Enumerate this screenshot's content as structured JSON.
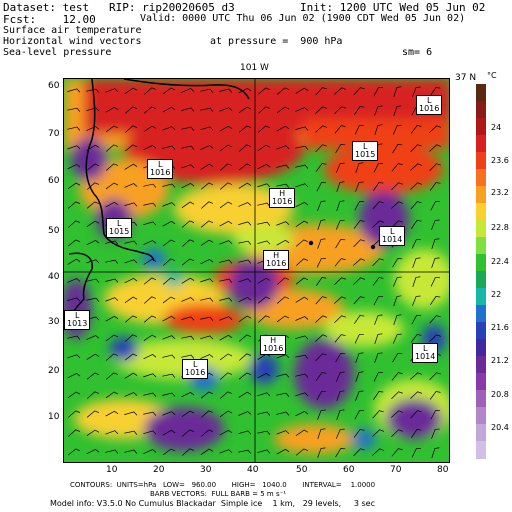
{
  "header": {
    "dataset_line": "Dataset: test   RIP: rip20020605 d3",
    "init_line": "Init: 1200 UTC Wed 05 Jun 02",
    "fcst_line": "Fcst:    12.00",
    "valid_line": "Valid: 0000 UTC Thu 06 Jun 02 (1900 CDT Wed 05 Jun 02)",
    "field1": "Surface air temperature",
    "field2": "Horizontal wind vectors",
    "field3": "Sea-level pressure",
    "pressure_line": "at pressure =  900 hPa",
    "sm_line": "sm= 6"
  },
  "map": {
    "top_label": "101 W",
    "right_label": "37 N",
    "y_ticks": [
      "60",
      "50",
      "40",
      "30",
      "20",
      "10"
    ],
    "x_ticks": [
      "10",
      "20",
      "30",
      "40",
      "50",
      "60",
      "70",
      "80"
    ],
    "pressure_centers": [
      {
        "type": "L",
        "value": "1016"
      },
      {
        "type": "L",
        "value": "1016"
      },
      {
        "type": "L",
        "value": "1015"
      },
      {
        "type": "H",
        "value": "1016"
      },
      {
        "type": "L",
        "value": "1015"
      },
      {
        "type": "L",
        "value": "1014"
      },
      {
        "type": "H",
        "value": "1016"
      },
      {
        "type": "L",
        "value": "1013"
      },
      {
        "type": "H",
        "value": "1016"
      },
      {
        "type": "L",
        "value": "1014"
      },
      {
        "type": "L",
        "value": "1016"
      }
    ]
  },
  "colorbar": {
    "unit": "°C",
    "labels": [
      "24",
      "23.6",
      "23.2",
      "22.8",
      "22.4",
      "22",
      "21.6",
      "21.2",
      "20.8",
      "20.4"
    ],
    "colors": [
      "#5a2a10",
      "#8b1a1a",
      "#b01818",
      "#d82020",
      "#f04018",
      "#f87020",
      "#f8a020",
      "#f8d030",
      "#c8e838",
      "#80e040",
      "#30c030",
      "#18a858",
      "#18b8a8",
      "#2070d0",
      "#2840b8",
      "#4028a0",
      "#6a2a98",
      "#8a3aa8",
      "#a060b8",
      "#b088c8",
      "#c0a8d8",
      "#d0c0e8"
    ]
  },
  "footer": {
    "line1": "CONTOURS:  UNITS=hPa   LOW=   960.00       HIGH=   1040.0       INTERVAL=    1.0000",
    "line2": "BARB VECTORS:  FULL BARB = 5 m s⁻¹",
    "line3": "Model info: V3.5.0 No Cumulus Blackadar  Simple ice    1 km,   29 levels,     3 sec"
  }
}
